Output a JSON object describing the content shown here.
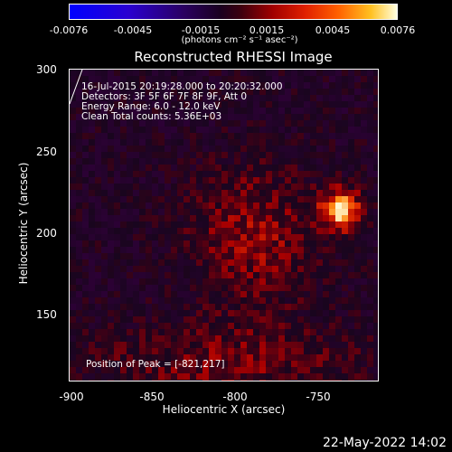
{
  "colorbar": {
    "ticks": [
      "-0.0076",
      "-0.0045",
      "-0.0015",
      "0.0015",
      "0.0045",
      "0.0076"
    ],
    "units": "(photons cm⁻² s⁻¹ asec⁻²)",
    "colors": [
      "#0000ff",
      "#2a00d0",
      "#1a0020",
      "#a00000",
      "#ff6000",
      "#ffffe0"
    ]
  },
  "title": "Reconstructed RHESSI Image",
  "info": {
    "line1": "16-Jul-2015 20:19:28.000 to 20:20:32.000",
    "line2": "Detectors: 3F 5F 6F 7F 8F 9F, Att 0",
    "line3": "Energy Range: 6.0 - 12.0 keV",
    "line4": "Clean    Total counts: 5.36E+03",
    "peak": "Position of Peak = [-821,217]"
  },
  "axes": {
    "xlabel": "Heliocentric X (arcsec)",
    "ylabel": "Heliocentric Y (arcsec)",
    "xticks": [
      "-900",
      "-850",
      "-800",
      "-750"
    ],
    "yticks": [
      "300",
      "250",
      "200",
      "150"
    ]
  },
  "chart_data": {
    "type": "heatmap",
    "title": "Reconstructed RHESSI Image",
    "xlabel": "Heliocentric X (arcsec)",
    "ylabel": "Heliocentric Y (arcsec)",
    "xlim": [
      -905,
      -808
    ],
    "ylim": [
      108,
      302
    ],
    "colorbar_range": [
      -0.0076,
      0.0076
    ],
    "peak": [
      -821,
      217
    ]
  },
  "timestamp": "22-May-2022 14:02"
}
